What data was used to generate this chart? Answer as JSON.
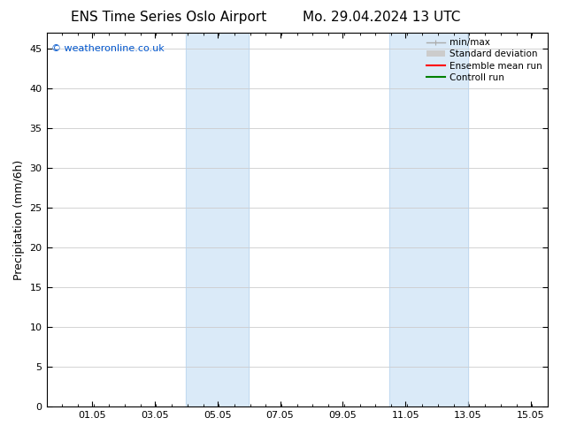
{
  "title_left": "ENS Time Series Oslo Airport",
  "title_right": "Mo. 29.04.2024 13 UTC",
  "ylabel": "Precipitation (mm/6h)",
  "ylim": [
    0,
    47
  ],
  "yticks": [
    0,
    5,
    10,
    15,
    20,
    25,
    30,
    35,
    40,
    45
  ],
  "xtick_labels": [
    "01.05",
    "03.05",
    "05.05",
    "07.05",
    "09.05",
    "11.05",
    "13.05",
    "15.05"
  ],
  "xtick_positions": [
    1.458,
    3.458,
    5.458,
    7.458,
    9.458,
    11.458,
    13.458,
    15.458
  ],
  "xlim": [
    0,
    16.0
  ],
  "shaded_bands": [
    {
      "x_start": 4.458,
      "x_end": 6.458
    },
    {
      "x_start": 10.958,
      "x_end": 13.458
    }
  ],
  "shaded_color": "#daeaf8",
  "shaded_edge_color": "#b8d4ed",
  "watermark_text": "© weatheronline.co.uk",
  "watermark_color": "#0055cc",
  "legend_items": [
    {
      "label": "min/max",
      "color": "#aaaaaa",
      "lw": 1,
      "style": "minmax"
    },
    {
      "label": "Standard deviation",
      "color": "#cccccc",
      "lw": 5,
      "style": "band"
    },
    {
      "label": "Ensemble mean run",
      "color": "red",
      "lw": 1.5,
      "style": "line"
    },
    {
      "label": "Controll run",
      "color": "green",
      "lw": 1.5,
      "style": "line"
    }
  ],
  "background_color": "#ffffff",
  "grid_color": "#cccccc",
  "title_fontsize": 11,
  "tick_fontsize": 8,
  "ylabel_fontsize": 9,
  "legend_fontsize": 7.5
}
